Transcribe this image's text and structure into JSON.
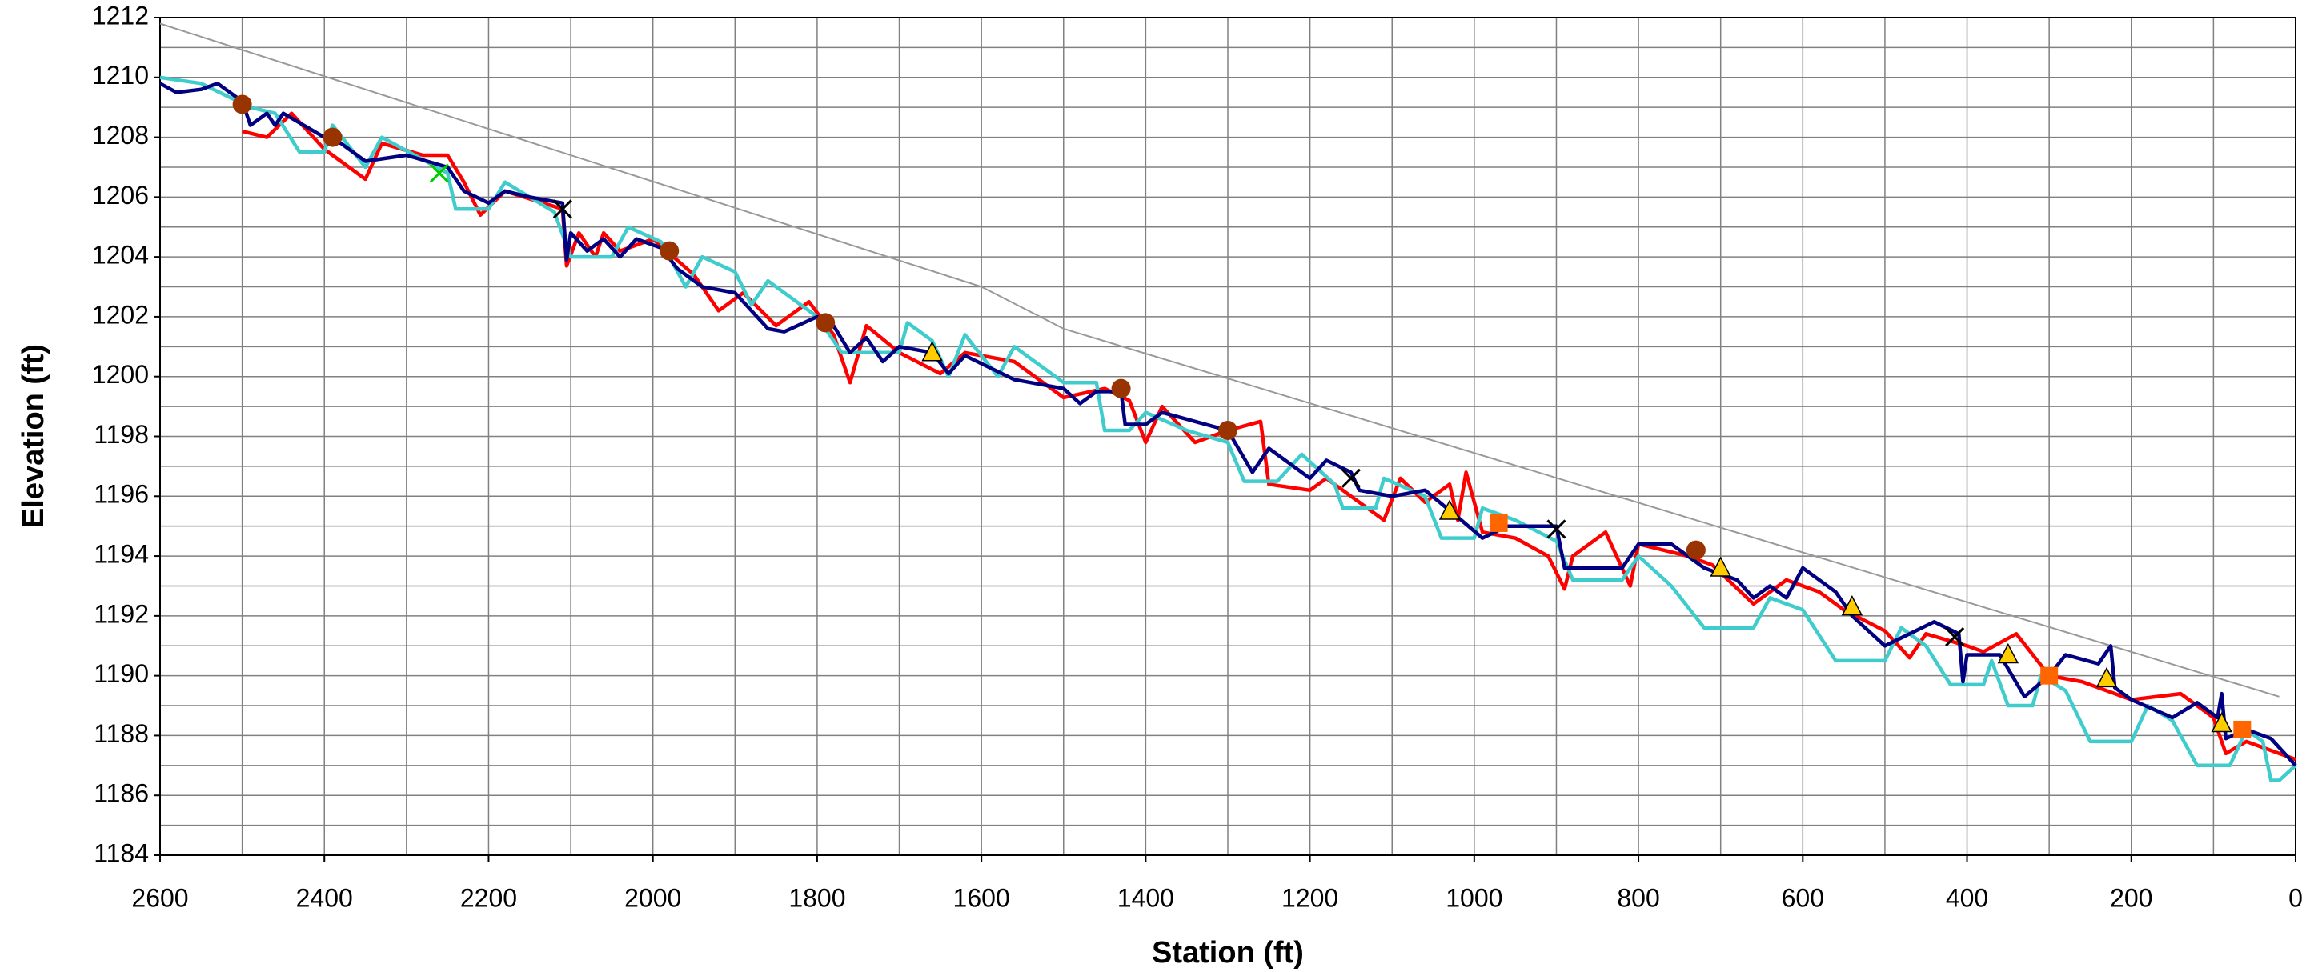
{
  "chart_data": {
    "type": "line",
    "xlabel": "Station (ft)",
    "ylabel": "Elevation (ft)",
    "xlim": [
      2600,
      0
    ],
    "ylim": [
      1184,
      1212
    ],
    "xticks": [
      2600,
      2400,
      2200,
      2000,
      1800,
      1600,
      1400,
      1200,
      1000,
      800,
      600,
      400,
      200,
      0
    ],
    "yticks": [
      1184,
      1186,
      1188,
      1190,
      1192,
      1194,
      1196,
      1198,
      1200,
      1202,
      1204,
      1206,
      1208,
      1210,
      1212
    ],
    "grid": true,
    "series": [
      {
        "color": "#999999",
        "mode": "line",
        "width": 2,
        "x": [
          2600,
          1600,
          1500,
          20
        ],
        "values": [
          1211.8,
          1203.0,
          1201.6,
          1189.3
        ]
      },
      {
        "color": "#ff0000",
        "mode": "line",
        "width": 4.5,
        "x": [
          2500,
          2470,
          2440,
          2400,
          2350,
          2330,
          2280,
          2250,
          2230,
          2210,
          2180,
          2110,
          2105,
          2090,
          2070,
          2060,
          2040,
          2000,
          1950,
          1920,
          1890,
          1850,
          1810,
          1780,
          1760,
          1740,
          1700,
          1650,
          1620,
          1560,
          1500,
          1450,
          1420,
          1400,
          1380,
          1340,
          1300,
          1260,
          1250,
          1200,
          1180,
          1150,
          1110,
          1090,
          1060,
          1030,
          1020,
          1010,
          990,
          950,
          910,
          890,
          880,
          840,
          810,
          800,
          740,
          710,
          660,
          620,
          580,
          550,
          500,
          470,
          450,
          400,
          380,
          340,
          300,
          260,
          200,
          140,
          100,
          85,
          60,
          0
        ],
        "values": [
          1208.2,
          1208.0,
          1208.8,
          1207.6,
          1206.6,
          1207.8,
          1207.4,
          1207.4,
          1206.5,
          1205.4,
          1206.2,
          1205.6,
          1203.7,
          1204.8,
          1204.0,
          1204.8,
          1204.2,
          1204.6,
          1203.4,
          1202.2,
          1202.8,
          1201.7,
          1202.5,
          1201.4,
          1199.8,
          1201.7,
          1200.8,
          1200.1,
          1200.8,
          1200.5,
          1199.3,
          1199.6,
          1199.2,
          1197.8,
          1199.0,
          1197.8,
          1198.2,
          1198.5,
          1196.4,
          1196.2,
          1196.6,
          1196.0,
          1195.2,
          1196.6,
          1195.8,
          1196.4,
          1195.2,
          1196.8,
          1194.8,
          1194.6,
          1194.0,
          1192.9,
          1194.0,
          1194.8,
          1193.0,
          1194.4,
          1194.0,
          1193.7,
          1192.4,
          1193.2,
          1192.8,
          1192.2,
          1191.5,
          1190.6,
          1191.4,
          1191.0,
          1190.8,
          1191.4,
          1190.0,
          1189.8,
          1189.2,
          1189.4,
          1188.6,
          1187.4,
          1187.8,
          1187.2
        ]
      },
      {
        "color": "#40cccc",
        "mode": "line",
        "width": 4.5,
        "x": [
          2600,
          2550,
          2490,
          2460,
          2430,
          2400,
          2390,
          2350,
          2330,
          2250,
          2240,
          2200,
          2180,
          2120,
          2100,
          2050,
          2030,
          1990,
          1960,
          1940,
          1900,
          1880,
          1860,
          1800,
          1770,
          1700,
          1690,
          1660,
          1640,
          1620,
          1580,
          1560,
          1500,
          1460,
          1450,
          1420,
          1400,
          1350,
          1300,
          1280,
          1240,
          1210,
          1170,
          1160,
          1120,
          1110,
          1060,
          1040,
          1000,
          990,
          950,
          900,
          880,
          820,
          800,
          760,
          720,
          660,
          640,
          600,
          560,
          500,
          480,
          450,
          420,
          380,
          370,
          350,
          320,
          310,
          280,
          250,
          200,
          180,
          150,
          120,
          80,
          60,
          40,
          30,
          20,
          0
        ],
        "values": [
          1210.0,
          1209.8,
          1209.0,
          1208.8,
          1207.5,
          1207.5,
          1208.4,
          1207.0,
          1208.0,
          1206.8,
          1205.6,
          1205.6,
          1206.5,
          1205.5,
          1204.0,
          1204.0,
          1205.0,
          1204.5,
          1203.0,
          1204.0,
          1203.5,
          1202.4,
          1203.2,
          1202.0,
          1200.8,
          1200.8,
          1201.8,
          1201.2,
          1200.0,
          1201.4,
          1200.0,
          1201.0,
          1199.8,
          1199.8,
          1198.2,
          1198.2,
          1198.8,
          1198.2,
          1197.8,
          1196.5,
          1196.5,
          1197.4,
          1196.4,
          1195.6,
          1195.6,
          1196.6,
          1196.0,
          1194.6,
          1194.6,
          1195.6,
          1195.2,
          1194.5,
          1193.2,
          1193.2,
          1194.0,
          1193.0,
          1191.6,
          1191.6,
          1192.6,
          1192.2,
          1190.5,
          1190.5,
          1191.6,
          1191.0,
          1189.7,
          1189.7,
          1190.5,
          1189.0,
          1189.0,
          1190.0,
          1189.5,
          1187.8,
          1187.8,
          1189.0,
          1188.5,
          1187.0,
          1187.0,
          1188.2,
          1187.8,
          1186.5,
          1186.5,
          1187.0
        ]
      },
      {
        "color": "#000080",
        "mode": "line",
        "width": 4.5,
        "x": [
          2600,
          2580,
          2550,
          2530,
          2500,
          2490,
          2470,
          2460,
          2450,
          2400,
          2380,
          2350,
          2300,
          2250,
          2230,
          2200,
          2180,
          2150,
          2110,
          2105,
          2100,
          2080,
          2060,
          2040,
          2020,
          1990,
          1970,
          1940,
          1900,
          1860,
          1840,
          1800,
          1780,
          1760,
          1740,
          1720,
          1700,
          1660,
          1640,
          1620,
          1560,
          1500,
          1480,
          1460,
          1430,
          1425,
          1400,
          1380,
          1340,
          1300,
          1270,
          1250,
          1220,
          1200,
          1180,
          1150,
          1140,
          1100,
          1060,
          1020,
          990,
          960,
          900,
          890,
          860,
          820,
          800,
          760,
          720,
          680,
          660,
          640,
          620,
          600,
          560,
          540,
          500,
          440,
          410,
          405,
          400,
          360,
          330,
          300,
          280,
          240,
          225,
          220,
          200,
          150,
          120,
          95,
          90,
          85,
          60,
          30,
          0
        ],
        "values": [
          1209.8,
          1209.5,
          1209.6,
          1209.8,
          1209.2,
          1208.4,
          1208.8,
          1208.4,
          1208.8,
          1208.0,
          1207.8,
          1207.2,
          1207.4,
          1207.0,
          1206.2,
          1205.8,
          1206.2,
          1206.0,
          1205.8,
          1203.9,
          1204.8,
          1204.2,
          1204.6,
          1204.0,
          1204.6,
          1204.3,
          1203.6,
          1203.0,
          1202.8,
          1201.6,
          1201.5,
          1202.0,
          1201.7,
          1200.8,
          1201.3,
          1200.5,
          1201.0,
          1200.8,
          1200.1,
          1200.7,
          1199.9,
          1199.6,
          1199.1,
          1199.5,
          1199.5,
          1198.4,
          1198.4,
          1198.8,
          1198.5,
          1198.2,
          1196.8,
          1197.6,
          1197.0,
          1196.6,
          1197.2,
          1196.8,
          1196.2,
          1196.0,
          1196.2,
          1195.3,
          1194.6,
          1195.0,
          1195.0,
          1193.6,
          1193.6,
          1193.6,
          1194.4,
          1194.4,
          1193.6,
          1193.2,
          1192.6,
          1193.0,
          1192.6,
          1193.6,
          1192.8,
          1192.0,
          1191.0,
          1191.8,
          1191.4,
          1189.8,
          1190.7,
          1190.7,
          1189.3,
          1190.0,
          1190.7,
          1190.4,
          1191.0,
          1189.6,
          1189.2,
          1188.6,
          1189.1,
          1188.6,
          1189.4,
          1187.9,
          1188.2,
          1187.9,
          1187.0
        ]
      },
      {
        "color": "#993300",
        "mode": "circle",
        "x": [
          2500,
          2390,
          1980,
          1790,
          1430,
          1300,
          730
        ],
        "values": [
          1209.1,
          1208.0,
          1204.2,
          1201.8,
          1199.6,
          1198.2,
          1194.2
        ]
      },
      {
        "color": "#ffcc00",
        "mode": "triangle",
        "x": [
          1660,
          1030,
          700,
          540,
          350,
          230,
          90
        ],
        "values": [
          1200.8,
          1195.5,
          1193.6,
          1192.3,
          1190.7,
          1189.9,
          1188.4
        ]
      },
      {
        "color": "#ff6600",
        "mode": "square",
        "x": [
          970,
          300,
          65
        ],
        "values": [
          1195.1,
          1190.0,
          1188.2
        ]
      },
      {
        "color": "#000000",
        "mode": "x",
        "x": [
          2110,
          1150,
          900,
          415
        ],
        "values": [
          1205.6,
          1196.6,
          1194.9,
          1191.3
        ]
      },
      {
        "color": "#00cc00",
        "mode": "x",
        "x": [
          2260
        ],
        "values": [
          1206.8
        ]
      }
    ]
  }
}
